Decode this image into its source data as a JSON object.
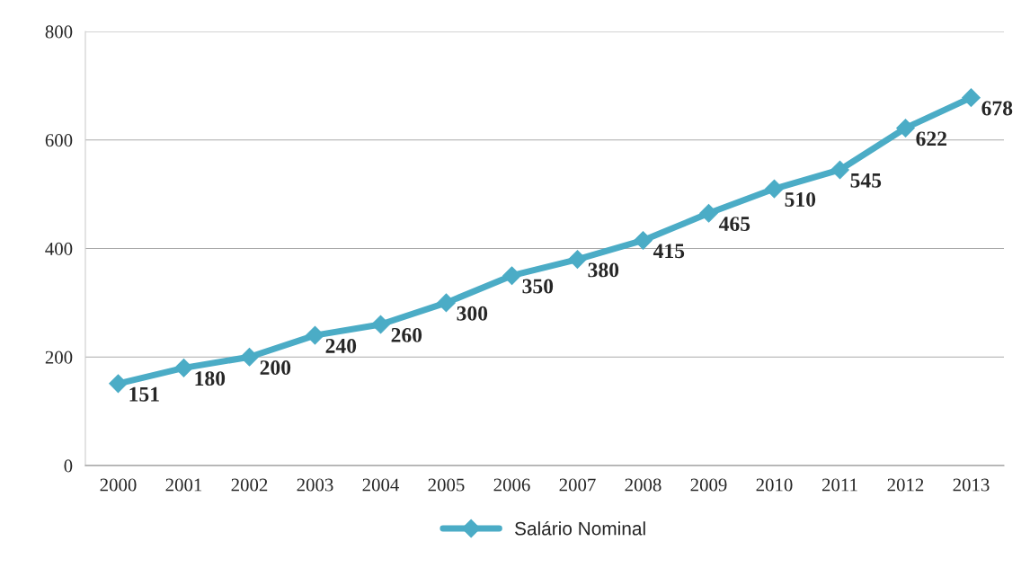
{
  "chart_data": {
    "type": "line",
    "categories": [
      "2000",
      "2001",
      "2002",
      "2003",
      "2004",
      "2005",
      "2006",
      "2007",
      "2008",
      "2009",
      "2010",
      "2011",
      "2012",
      "2013"
    ],
    "series": [
      {
        "name": "Salário Nominal",
        "color": "#4bacc6",
        "values": [
          151,
          180,
          200,
          240,
          260,
          300,
          350,
          380,
          415,
          465,
          510,
          545,
          622,
          678
        ]
      }
    ],
    "ylim": [
      0,
      800
    ],
    "yticks": [
      0,
      200,
      400,
      600,
      800
    ],
    "grid": "y",
    "legend": "bottom",
    "marker": "diamond",
    "line_style": "solid",
    "data_labels": true
  }
}
